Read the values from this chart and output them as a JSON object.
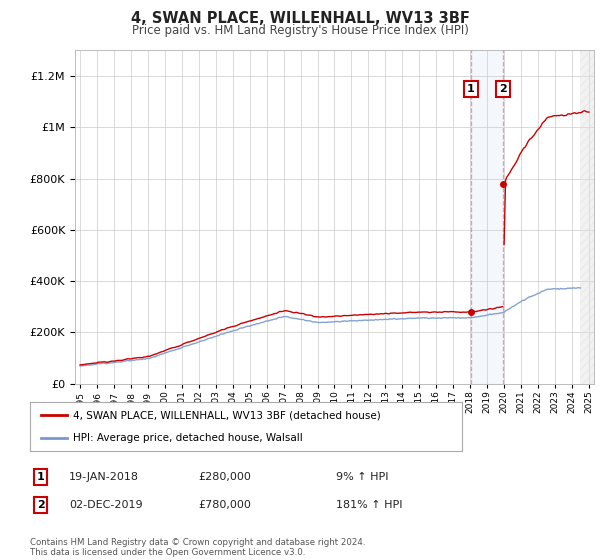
{
  "title1": "4, SWAN PLACE, WILLENHALL, WV13 3BF",
  "title2": "Price paid vs. HM Land Registry's House Price Index (HPI)",
  "ylim": [
    0,
    1300000
  ],
  "yticks": [
    0,
    200000,
    400000,
    600000,
    800000,
    1000000,
    1200000
  ],
  "ytick_labels": [
    "£0",
    "£200K",
    "£400K",
    "£600K",
    "£800K",
    "£1M",
    "£1.2M"
  ],
  "x_start_year": 1995,
  "x_end_year": 2025,
  "hpi_color": "#7799cc",
  "price_color": "#cc0000",
  "sale1_year": 2018.05,
  "sale1_price": 280000,
  "sale2_year": 2019.92,
  "sale2_price": 780000,
  "legend_line1": "4, SWAN PLACE, WILLENHALL, WV13 3BF (detached house)",
  "legend_line2": "HPI: Average price, detached house, Walsall",
  "sale1_date": "19-JAN-2018",
  "sale1_amount": "£280,000",
  "sale1_hpi": "9% ↑ HPI",
  "sale2_date": "02-DEC-2019",
  "sale2_amount": "£780,000",
  "sale2_hpi": "181% ↑ HPI",
  "footer": "Contains HM Land Registry data © Crown copyright and database right 2024.\nThis data is licensed under the Open Government Licence v3.0.",
  "bg_color": "#ffffff",
  "grid_color": "#cccccc"
}
